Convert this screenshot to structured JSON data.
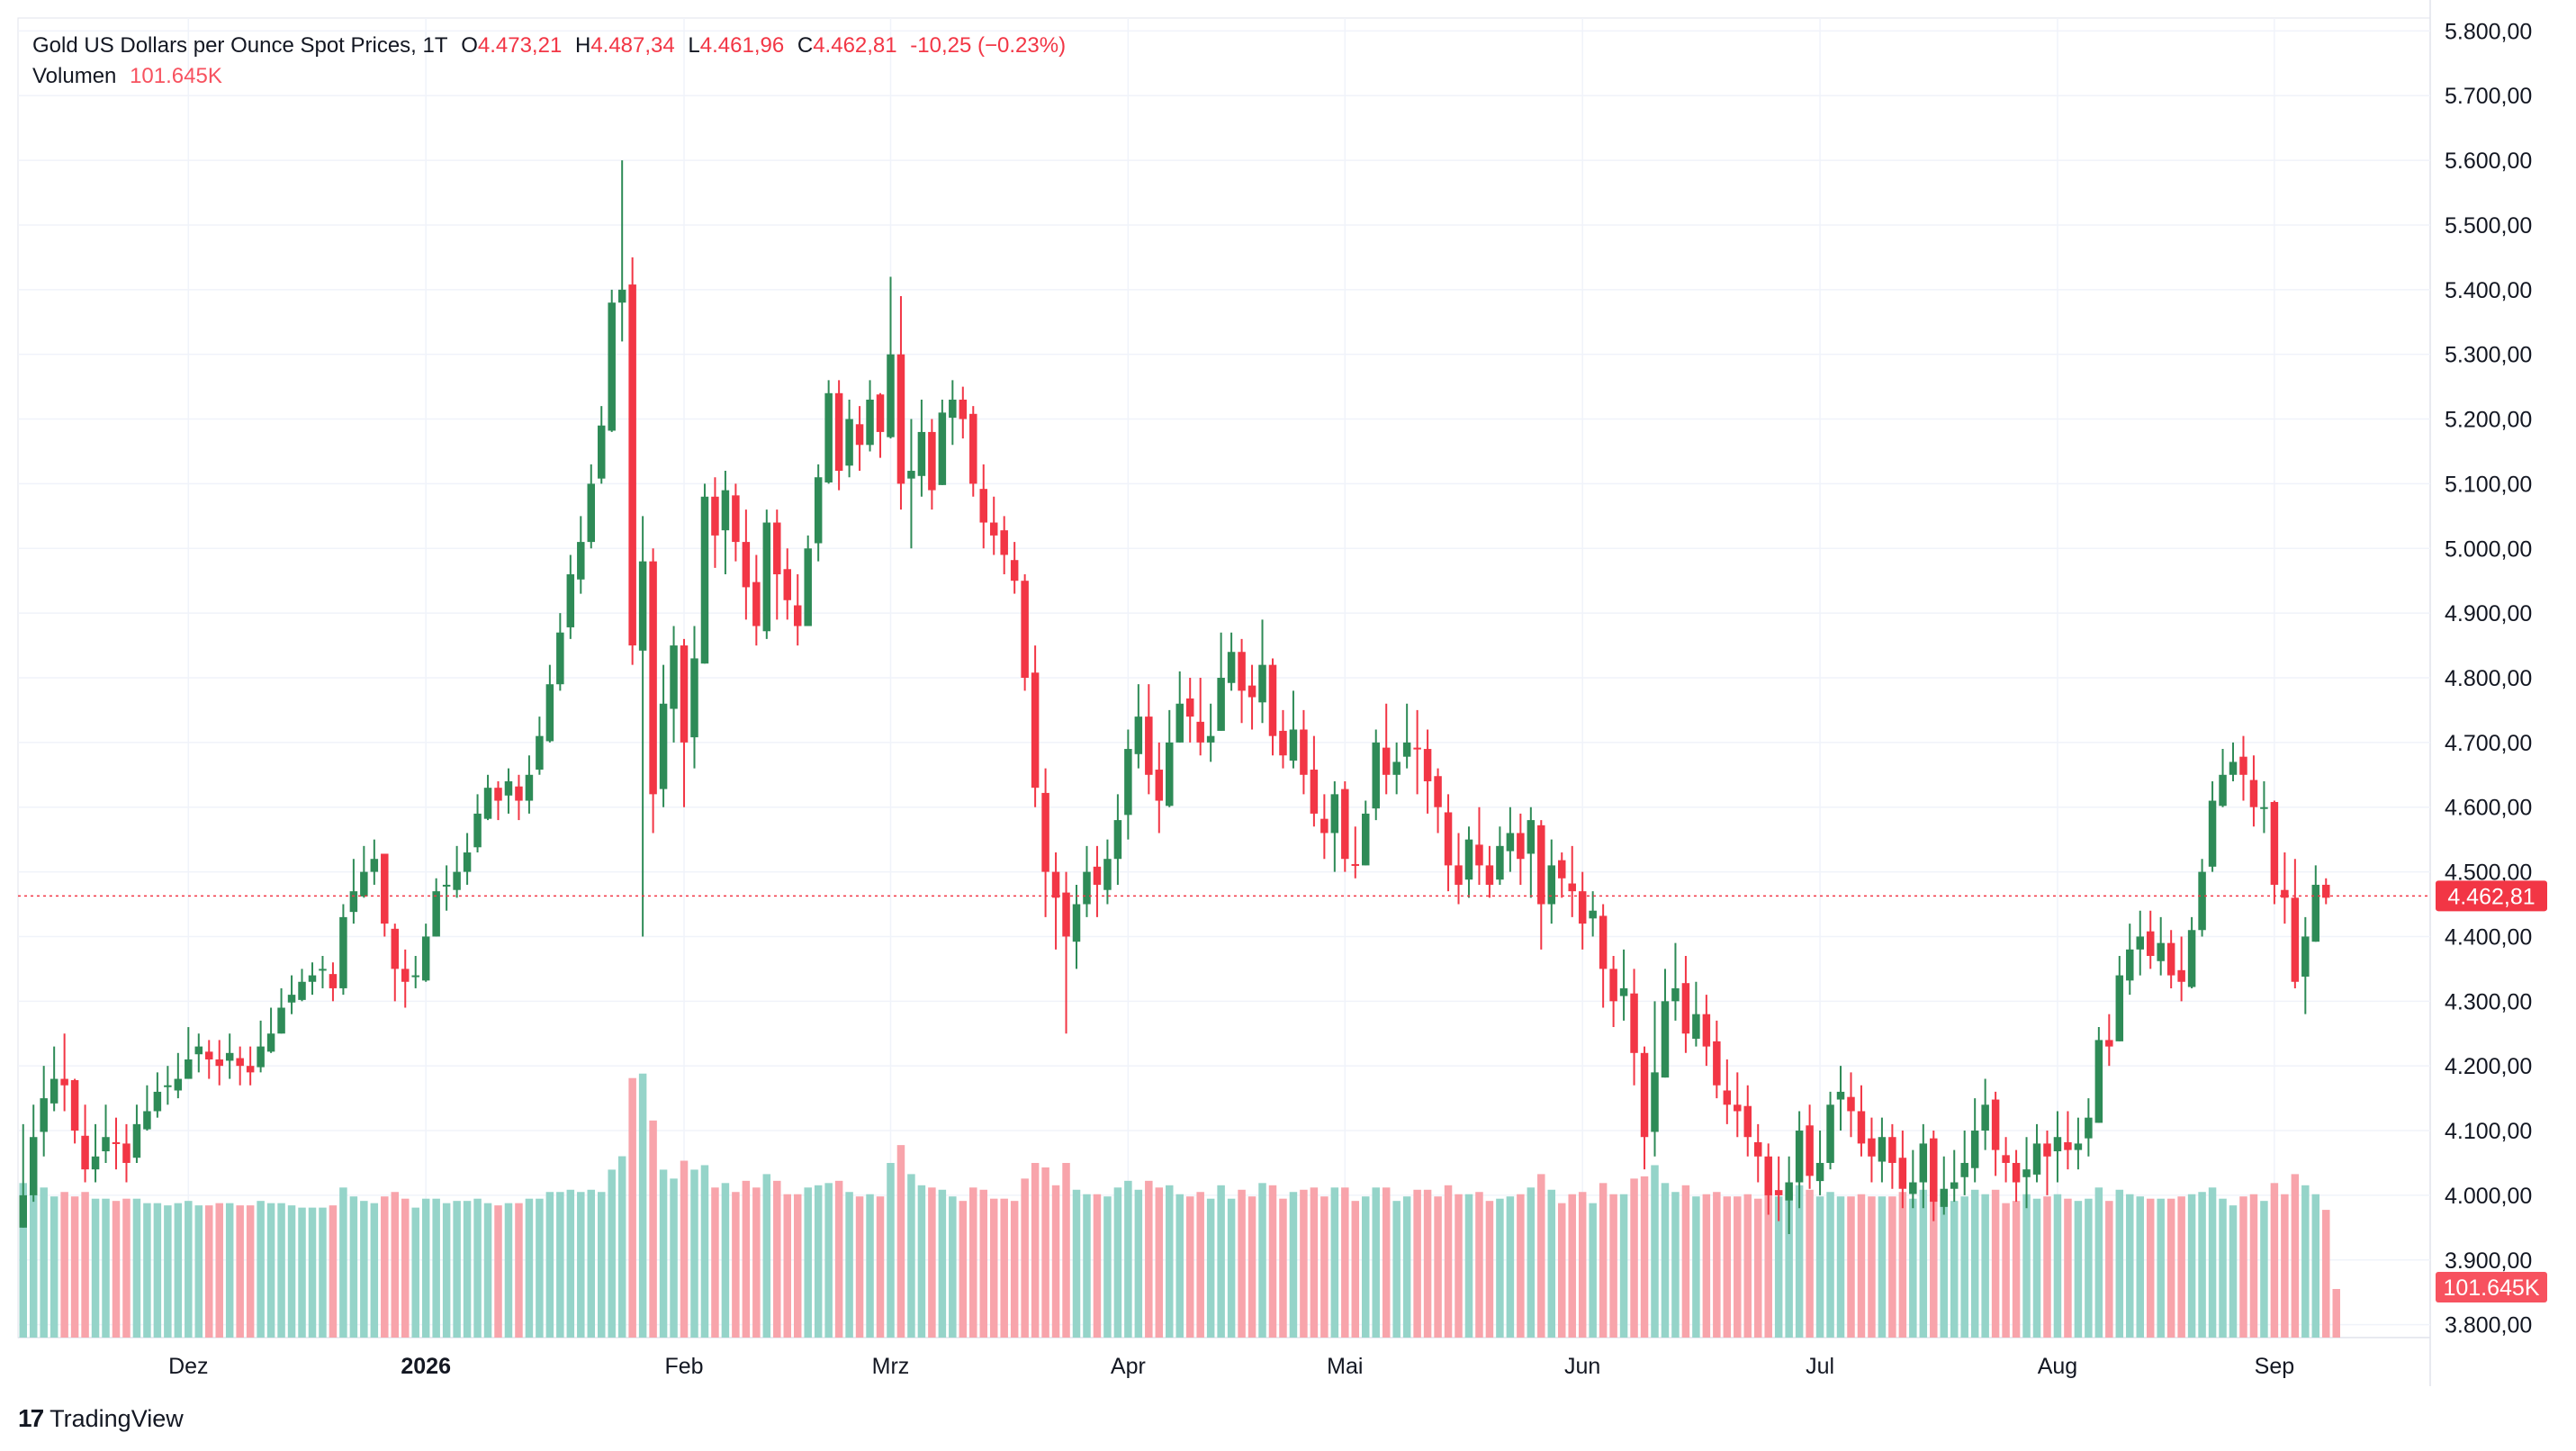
{
  "legend": {
    "symbol": "Gold US Dollars per Ounce Spot Prices, 1T",
    "o_label": "O",
    "o": "4.473,21",
    "h_label": "H",
    "h": "4.487,34",
    "l_label": "L",
    "l": "4.461,96",
    "c_label": "C",
    "c": "4.462,81",
    "change": "-10,25 (−0.23%)",
    "volume_label": "Volumen",
    "volume": "101.645K"
  },
  "brand": "TradingView",
  "colors": {
    "up": "#26a69a",
    "candle_up": "#2e8b57",
    "down": "#f23645",
    "vol_up": "#95d4c9",
    "vol_down": "#f8a4ab",
    "grid": "#f0f3fa",
    "axis_text": "#131722"
  },
  "chart_data": {
    "type": "candlestick",
    "x_labels": [
      {
        "label": "Dez",
        "index": 16
      },
      {
        "label": "2026",
        "index": 39,
        "bold": true
      },
      {
        "label": "Feb",
        "index": 64
      },
      {
        "label": "Mrz",
        "index": 84
      },
      {
        "label": "Apr",
        "index": 107
      },
      {
        "label": "Mai",
        "index": 128
      },
      {
        "label": "Jun",
        "index": 151
      },
      {
        "label": "Jul",
        "index": 174
      },
      {
        "label": "Aug",
        "index": 197
      },
      {
        "label": "Sep",
        "index": 218
      }
    ],
    "y_ticks": [
      "3.800,00",
      "3.900,00",
      "4.000,00",
      "4.100,00",
      "4.200,00",
      "4.300,00",
      "4.400,00",
      "4.500,00",
      "4.600,00",
      "4.700,00",
      "4.800,00",
      "4.900,00",
      "5.000,00",
      "5.100,00",
      "5.200,00",
      "5.300,00",
      "5.400,00",
      "5.500,00",
      "5.600,00",
      "5.700,00",
      "5.800,00"
    ],
    "y_tick_values": [
      3800,
      3900,
      4000,
      4100,
      4200,
      4300,
      4400,
      4500,
      4600,
      4700,
      4800,
      4900,
      5000,
      5100,
      5200,
      5300,
      5400,
      5500,
      5600,
      5700,
      5800
    ],
    "ylim": [
      3780,
      5820
    ],
    "last_price_label": "4.462,81",
    "last_price": 4462.81,
    "last_volume_label": "101.645K",
    "close": [
      4000,
      4090,
      4150,
      4180,
      4170,
      4100,
      4040,
      4060,
      4090,
      4080,
      4050,
      4110,
      4130,
      4160,
      4170,
      4180,
      4210,
      4230,
      4210,
      4200,
      4220,
      4200,
      4190,
      4230,
      4250,
      4290,
      4310,
      4330,
      4340,
      4350,
      4320,
      4430,
      4470,
      4500,
      4520,
      4420,
      4350,
      4330,
      4340,
      4400,
      4470,
      4480,
      4500,
      4530,
      4590,
      4630,
      4610,
      4640,
      4610,
      4650,
      4710,
      4790,
      4870,
      4960,
      5010,
      5100,
      5190,
      5380,
      5400,
      4850,
      4980,
      4620,
      4760,
      4850,
      4700,
      4830,
      5080,
      5020,
      5090,
      5010,
      4940,
      4880,
      5040,
      4960,
      4920,
      4880,
      5000,
      5110,
      5240,
      5120,
      5200,
      5160,
      5230,
      5180,
      5300,
      5100,
      5120,
      5180,
      5090,
      5210,
      5230,
      5200,
      5100,
      5040,
      5020,
      4990,
      4950,
      4800,
      4630,
      4500,
      4460,
      4400,
      4450,
      4500,
      4480,
      4520,
      4580,
      4690,
      4740,
      4650,
      4610,
      4700,
      4760,
      4740,
      4700,
      4710,
      4800,
      4840,
      4780,
      4770,
      4820,
      4710,
      4680,
      4720,
      4650,
      4590,
      4560,
      4620,
      4520,
      4510,
      4590,
      4700,
      4650,
      4670,
      4700,
      4690,
      4640,
      4600,
      4510,
      4480,
      4550,
      4510,
      4480,
      4540,
      4560,
      4520,
      4580,
      4450,
      4510,
      4490,
      4470,
      4420,
      4440,
      4350,
      4300,
      4320,
      4220,
      4090,
      4190,
      4300,
      4320,
      4250,
      4280,
      4230,
      4170,
      4140,
      4130,
      4090,
      4060,
      4000,
      4000,
      4020,
      4100,
      4030,
      4050,
      4140,
      4160,
      4130,
      4080,
      4060,
      4090,
      4050,
      4010,
      4020,
      4080,
      3990,
      4010,
      4020,
      4050,
      4100,
      4140,
      4070,
      4050,
      4020,
      4040,
      4080,
      4060,
      4090,
      4070,
      4080,
      4120,
      4240,
      4230,
      4340,
      4380,
      4400,
      4370,
      4390,
      4340,
      4330,
      4410,
      4500,
      4610,
      4650,
      4670,
      4650,
      4600,
      4600,
      4480,
      4460,
      4330,
      4400,
      4480,
      4460
    ],
    "highs": [
      4110,
      4140,
      4200,
      4230,
      4250,
      4180,
      4140,
      4110,
      4140,
      4120,
      4110,
      4140,
      4170,
      4190,
      4200,
      4220,
      4260,
      4250,
      4240,
      4240,
      4250,
      4230,
      4230,
      4270,
      4290,
      4320,
      4340,
      4350,
      4360,
      4370,
      4360,
      4450,
      4520,
      4540,
      4550,
      4500,
      4420,
      4380,
      4370,
      4420,
      4490,
      4510,
      4540,
      4560,
      4620,
      4650,
      4640,
      4660,
      4650,
      4680,
      4740,
      4820,
      4900,
      4990,
      5050,
      5130,
      5220,
      5400,
      5600,
      5450,
      5050,
      5000,
      4820,
      4880,
      4860,
      4880,
      5100,
      5110,
      5120,
      5100,
      5060,
      4990,
      5060,
      5060,
      5000,
      4960,
      5020,
      5130,
      5260,
      5260,
      5230,
      5220,
      5260,
      5240,
      5420,
      5390,
      5200,
      5230,
      5200,
      5230,
      5260,
      5250,
      5220,
      5130,
      5080,
      5050,
      5010,
      4960,
      4850,
      4660,
      4530,
      4500,
      4480,
      4540,
      4540,
      4550,
      4620,
      4720,
      4790,
      4790,
      4700,
      4750,
      4810,
      4800,
      4800,
      4760,
      4870,
      4870,
      4860,
      4820,
      4890,
      4830,
      4750,
      4780,
      4750,
      4710,
      4620,
      4640,
      4640,
      4570,
      4610,
      4720,
      4760,
      4700,
      4760,
      4750,
      4720,
      4660,
      4620,
      4560,
      4570,
      4600,
      4540,
      4570,
      4600,
      4590,
      4600,
      4580,
      4550,
      4530,
      4540,
      4500,
      4470,
      4450,
      4370,
      4380,
      4350,
      4230,
      4300,
      4350,
      4390,
      4370,
      4330,
      4310,
      4270,
      4210,
      4190,
      4170,
      4110,
      4080,
      4060,
      4060,
      4130,
      4140,
      4100,
      4160,
      4200,
      4190,
      4170,
      4120,
      4120,
      4110,
      4100,
      4070,
      4110,
      4100,
      4060,
      4070,
      4100,
      4150,
      4180,
      4160,
      4090,
      4070,
      4090,
      4110,
      4100,
      4130,
      4130,
      4120,
      4150,
      4260,
      4280,
      4370,
      4420,
      4440,
      4440,
      4430,
      4410,
      4400,
      4430,
      4520,
      4640,
      4690,
      4700,
      4710,
      4680,
      4640,
      4610,
      4530,
      4520,
      4430,
      4510,
      4490
    ],
    "lows": [
      3950,
      3990,
      4060,
      4130,
      4130,
      4080,
      4020,
      4020,
      4050,
      4040,
      4020,
      4050,
      4100,
      4120,
      4140,
      4150,
      4180,
      4190,
      4180,
      4170,
      4180,
      4170,
      4170,
      4190,
      4220,
      4250,
      4280,
      4300,
      4310,
      4320,
      4300,
      4310,
      4420,
      4460,
      4480,
      4400,
      4300,
      4290,
      4320,
      4330,
      4400,
      4440,
      4460,
      4480,
      4530,
      4580,
      4580,
      4590,
      4580,
      4590,
      4650,
      4700,
      4780,
      4860,
      4930,
      5000,
      5100,
      5180,
      5320,
      4820,
      4400,
      4560,
      4600,
      4700,
      4600,
      4660,
      4860,
      4970,
      4960,
      4980,
      4890,
      4850,
      4860,
      4890,
      4890,
      4850,
      4880,
      4980,
      5100,
      5090,
      5110,
      5120,
      5150,
      5140,
      5170,
      5060,
      5000,
      5080,
      5060,
      5100,
      5160,
      5170,
      5080,
      5000,
      4990,
      4960,
      4930,
      4780,
      4600,
      4430,
      4380,
      4250,
      4350,
      4430,
      4430,
      4450,
      4480,
      4550,
      4660,
      4620,
      4560,
      4600,
      4700,
      4700,
      4680,
      4670,
      4720,
      4780,
      4730,
      4720,
      4730,
      4680,
      4660,
      4660,
      4620,
      4570,
      4520,
      4500,
      4500,
      4490,
      4510,
      4580,
      4620,
      4620,
      4660,
      4620,
      4590,
      4560,
      4470,
      4450,
      4460,
      4480,
      4460,
      4480,
      4500,
      4480,
      4460,
      4380,
      4420,
      4460,
      4430,
      4380,
      4400,
      4290,
      4260,
      4270,
      4170,
      4040,
      4060,
      4190,
      4270,
      4220,
      4230,
      4200,
      4150,
      4110,
      4090,
      4060,
      4020,
      3970,
      3960,
      3940,
      3980,
      4010,
      4000,
      4040,
      4100,
      4090,
      4060,
      4020,
      4020,
      4010,
      3980,
      3980,
      3980,
      3960,
      3970,
      3990,
      4000,
      4020,
      4070,
      4030,
      4020,
      3990,
      3980,
      4020,
      4000,
      4020,
      4040,
      4040,
      4060,
      4120,
      4200,
      4240,
      4310,
      4340,
      4350,
      4340,
      4320,
      4300,
      4320,
      4400,
      4500,
      4600,
      4640,
      4610,
      4570,
      4560,
      4450,
      4420,
      4320,
      4280,
      4400,
      4450
    ]
  }
}
